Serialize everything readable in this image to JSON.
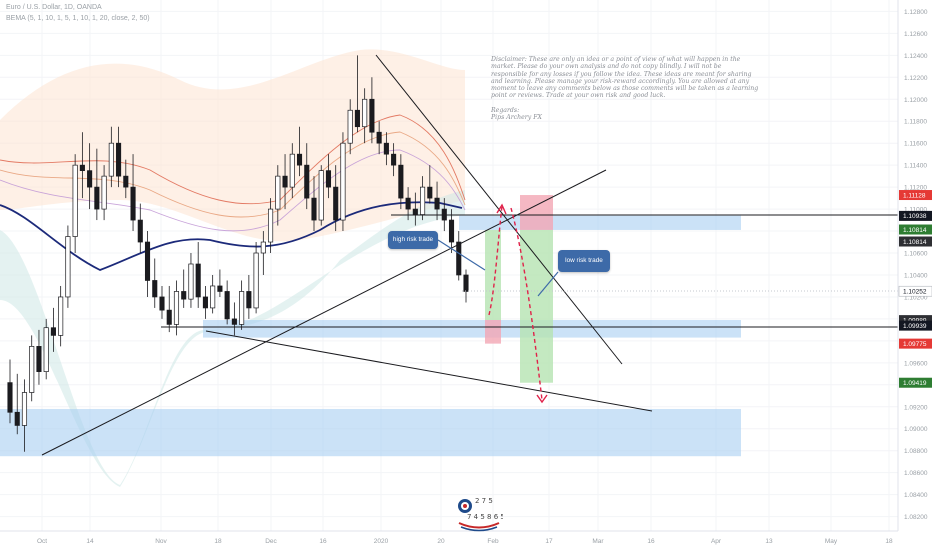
{
  "header": {
    "symbol_line": "Euro / U.S. Dollar, 1D, OANDA",
    "indicator_line": "BEMA (5, 1, 10, 1, 5, 1, 10, 1, 20, close, 2, 50)"
  },
  "disclaimer": {
    "paragraph": "Disclaimer: These are only an idea or a point of view of what will happen in the market. Please do your own analysis and do not copy blindly. I will not be responsible for any losses if you follow the idea. These ideas are meant for sharing and learning. Please manage your risk-reward accordingly. You are allowed at any moment to leave any comments below as those comments will be taken as a learning point or reviews. Trade at your own risk and good luck.",
    "regards": "Regards:",
    "author": "Pips Archery FX"
  },
  "callouts": {
    "high_risk": "high risk trade",
    "low_risk": "low risk trade"
  },
  "watermark": {
    "text_top": "2 7 5",
    "text_bottom": "7 4 5 8 6 5"
  },
  "chart_data": {
    "type": "candlestick",
    "symbol": "EURUSD",
    "timeframe": "1D",
    "ylim": [
      1.0816,
      1.1284
    ],
    "y_ticks": [
      1.128,
      1.126,
      1.124,
      1.122,
      1.12,
      1.118,
      1.116,
      1.114,
      1.112,
      1.11,
      1.108,
      1.106,
      1.104,
      1.102,
      1.1,
      1.098,
      1.096,
      1.094,
      1.092,
      1.09,
      1.088,
      1.086,
      1.084,
      1.082
    ],
    "y_tick_labels": [
      "1.12800",
      "1.12600",
      "1.12400",
      "1.12200",
      "1.12000",
      "1.11800",
      "1.11600",
      "1.11400",
      "1.11200",
      "1.11000",
      "1.10800",
      "1.10600",
      "1.10400",
      "1.10200",
      "1.10000",
      "1.09800",
      "1.09600",
      "1.09400",
      "1.09200",
      "1.09000",
      "1.08800",
      "1.08600",
      "1.08400",
      "1.08200"
    ],
    "x_tick_labels": [
      {
        "label": "Oct",
        "date": "2019-10-01"
      },
      {
        "label": "14",
        "date": "2019-10-14"
      },
      {
        "label": "Nov",
        "date": "2019-11-01"
      },
      {
        "label": "18",
        "date": "2019-11-18"
      },
      {
        "label": "Dec",
        "date": "2019-12-02"
      },
      {
        "label": "16",
        "date": "2019-12-16"
      },
      {
        "label": "2020",
        "date": "2020-01-01"
      },
      {
        "label": "20",
        "date": "2020-01-20"
      },
      {
        "label": "Feb",
        "date": "2020-02-03"
      },
      {
        "label": "17",
        "date": "2020-02-17"
      },
      {
        "label": "Mar",
        "date": "2020-03-02"
      },
      {
        "label": "16",
        "date": "2020-03-16"
      },
      {
        "label": "Apr",
        "date": "2020-04-01"
      },
      {
        "label": "13",
        "date": "2020-04-13"
      },
      {
        "label": "May",
        "date": "2020-05-01"
      },
      {
        "label": "18",
        "date": "2020-05-18"
      }
    ],
    "price_badges": [
      {
        "label": "1.11128",
        "value": 1.11128,
        "color": "#e53935"
      },
      {
        "label": "1.10938",
        "value": 1.10938,
        "color": "#131722"
      },
      {
        "label": "1.10814",
        "value": 1.10814,
        "color": "#2e7d32"
      },
      {
        "label": "1.10814",
        "value": 1.10814,
        "color": "#2e2f33"
      },
      {
        "label": "1.10252",
        "value": 1.10252,
        "color": "#ffffff"
      },
      {
        "label": "1.09989",
        "value": 1.09989,
        "color": "#2e2f33"
      },
      {
        "label": "1.09939",
        "value": 1.09939,
        "color": "#131722"
      },
      {
        "label": "1.09775",
        "value": 1.09775,
        "color": "#e53935"
      },
      {
        "label": "1.09419",
        "value": 1.09419,
        "color": "#2e7d32"
      }
    ],
    "candles": [
      {
        "o": 1.0942,
        "h": 1.0963,
        "l": 1.0905,
        "c": 1.0915
      },
      {
        "o": 1.0915,
        "h": 1.095,
        "l": 1.0895,
        "c": 1.0903
      },
      {
        "o": 1.0903,
        "h": 1.0945,
        "l": 1.0879,
        "c": 1.0933
      },
      {
        "o": 1.0933,
        "h": 1.0985,
        "l": 1.0925,
        "c": 1.0975
      },
      {
        "o": 1.0975,
        "h": 1.099,
        "l": 1.094,
        "c": 1.0952
      },
      {
        "o": 1.0952,
        "h": 1.1,
        "l": 1.0945,
        "c": 1.0992
      },
      {
        "o": 1.0992,
        "h": 1.101,
        "l": 1.097,
        "c": 1.0985
      },
      {
        "o": 1.0985,
        "h": 1.103,
        "l": 1.0975,
        "c": 1.102
      },
      {
        "o": 1.102,
        "h": 1.1085,
        "l": 1.101,
        "c": 1.1075
      },
      {
        "o": 1.1075,
        "h": 1.115,
        "l": 1.106,
        "c": 1.114
      },
      {
        "o": 1.114,
        "h": 1.117,
        "l": 1.111,
        "c": 1.1135
      },
      {
        "o": 1.1135,
        "h": 1.116,
        "l": 1.11,
        "c": 1.112
      },
      {
        "o": 1.112,
        "h": 1.1155,
        "l": 1.109,
        "c": 1.11
      },
      {
        "o": 1.11,
        "h": 1.114,
        "l": 1.109,
        "c": 1.113
      },
      {
        "o": 1.113,
        "h": 1.1175,
        "l": 1.112,
        "c": 1.116
      },
      {
        "o": 1.116,
        "h": 1.1175,
        "l": 1.112,
        "c": 1.113
      },
      {
        "o": 1.113,
        "h": 1.1145,
        "l": 1.111,
        "c": 1.112
      },
      {
        "o": 1.112,
        "h": 1.115,
        "l": 1.108,
        "c": 1.109
      },
      {
        "o": 1.109,
        "h": 1.1105,
        "l": 1.106,
        "c": 1.107
      },
      {
        "o": 1.107,
        "h": 1.108,
        "l": 1.102,
        "c": 1.1035
      },
      {
        "o": 1.1035,
        "h": 1.1055,
        "l": 1.101,
        "c": 1.102
      },
      {
        "o": 1.102,
        "h": 1.103,
        "l": 1.1,
        "c": 1.1008
      },
      {
        "o": 1.1008,
        "h": 1.103,
        "l": 1.0988,
        "c": 1.0995
      },
      {
        "o": 1.0995,
        "h": 1.1035,
        "l": 1.0985,
        "c": 1.1025
      },
      {
        "o": 1.1025,
        "h": 1.1045,
        "l": 1.101,
        "c": 1.1018
      },
      {
        "o": 1.1018,
        "h": 1.106,
        "l": 1.101,
        "c": 1.105
      },
      {
        "o": 1.105,
        "h": 1.107,
        "l": 1.101,
        "c": 1.102
      },
      {
        "o": 1.102,
        "h": 1.103,
        "l": 1.1,
        "c": 1.101
      },
      {
        "o": 1.101,
        "h": 1.104,
        "l": 1.1005,
        "c": 1.103
      },
      {
        "o": 1.103,
        "h": 1.1045,
        "l": 1.102,
        "c": 1.1025
      },
      {
        "o": 1.1025,
        "h": 1.1035,
        "l": 1.0995,
        "c": 1.1
      },
      {
        "o": 1.1,
        "h": 1.1015,
        "l": 1.0985,
        "c": 1.0995
      },
      {
        "o": 1.0995,
        "h": 1.1035,
        "l": 1.099,
        "c": 1.1025
      },
      {
        "o": 1.1025,
        "h": 1.104,
        "l": 1.1,
        "c": 1.101
      },
      {
        "o": 1.101,
        "h": 1.107,
        "l": 1.1005,
        "c": 1.106
      },
      {
        "o": 1.106,
        "h": 1.108,
        "l": 1.104,
        "c": 1.107
      },
      {
        "o": 1.107,
        "h": 1.111,
        "l": 1.106,
        "c": 1.11
      },
      {
        "o": 1.11,
        "h": 1.114,
        "l": 1.1085,
        "c": 1.113
      },
      {
        "o": 1.113,
        "h": 1.115,
        "l": 1.11,
        "c": 1.112
      },
      {
        "o": 1.112,
        "h": 1.116,
        "l": 1.111,
        "c": 1.115
      },
      {
        "o": 1.115,
        "h": 1.1175,
        "l": 1.113,
        "c": 1.114
      },
      {
        "o": 1.114,
        "h": 1.116,
        "l": 1.11,
        "c": 1.111
      },
      {
        "o": 1.111,
        "h": 1.113,
        "l": 1.108,
        "c": 1.109
      },
      {
        "o": 1.109,
        "h": 1.114,
        "l": 1.1085,
        "c": 1.1135
      },
      {
        "o": 1.1135,
        "h": 1.115,
        "l": 1.111,
        "c": 1.112
      },
      {
        "o": 1.112,
        "h": 1.114,
        "l": 1.108,
        "c": 1.109
      },
      {
        "o": 1.109,
        "h": 1.117,
        "l": 1.108,
        "c": 1.116
      },
      {
        "o": 1.116,
        "h": 1.12,
        "l": 1.115,
        "c": 1.119
      },
      {
        "o": 1.119,
        "h": 1.124,
        "l": 1.117,
        "c": 1.1175
      },
      {
        "o": 1.1175,
        "h": 1.121,
        "l": 1.116,
        "c": 1.12
      },
      {
        "o": 1.12,
        "h": 1.122,
        "l": 1.116,
        "c": 1.117
      },
      {
        "o": 1.117,
        "h": 1.118,
        "l": 1.115,
        "c": 1.116
      },
      {
        "o": 1.116,
        "h": 1.117,
        "l": 1.114,
        "c": 1.115
      },
      {
        "o": 1.115,
        "h": 1.116,
        "l": 1.113,
        "c": 1.114
      },
      {
        "o": 1.114,
        "h": 1.115,
        "l": 1.11,
        "c": 1.111
      },
      {
        "o": 1.111,
        "h": 1.112,
        "l": 1.109,
        "c": 1.11
      },
      {
        "o": 1.11,
        "h": 1.1115,
        "l": 1.1085,
        "c": 1.1095
      },
      {
        "o": 1.1095,
        "h": 1.113,
        "l": 1.109,
        "c": 1.112
      },
      {
        "o": 1.112,
        "h": 1.114,
        "l": 1.1105,
        "c": 1.111
      },
      {
        "o": 1.111,
        "h": 1.1125,
        "l": 1.109,
        "c": 1.11
      },
      {
        "o": 1.11,
        "h": 1.111,
        "l": 1.108,
        "c": 1.109
      },
      {
        "o": 1.109,
        "h": 1.11,
        "l": 1.106,
        "c": 1.107
      },
      {
        "o": 1.107,
        "h": 1.108,
        "l": 1.1035,
        "c": 1.104
      },
      {
        "o": 1.104,
        "h": 1.1045,
        "l": 1.1015,
        "c": 1.1025
      }
    ],
    "zones": [
      {
        "name": "resistance-zone",
        "y_top": 1.1094,
        "y_bottom": 1.1081,
        "color": "#a9cff2"
      },
      {
        "name": "support-zone",
        "y_top": 1.0999,
        "y_bottom": 1.0983,
        "color": "#a9cff2"
      },
      {
        "name": "demand-zone",
        "y_top": 1.0918,
        "y_bottom": 1.0875,
        "color": "#a9cff2"
      }
    ]
  }
}
